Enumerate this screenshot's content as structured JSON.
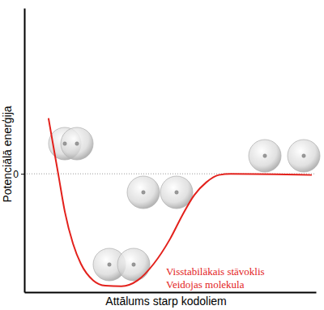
{
  "chart_data": {
    "type": "line",
    "x_label": "Attālums starp kodoliem",
    "y_label": "Potenciālā enerģija",
    "annotations": [
      "Visstabilākais stāvoklis",
      "Veidojas molekula"
    ],
    "x": [
      8.3,
      9.7,
      11.7,
      13.9,
      16.7,
      19.4,
      23.6,
      27.8,
      33.3,
      38.9,
      44.4,
      50,
      54.2,
      58.3,
      62.5,
      66.7,
      70.8,
      98.6
    ],
    "values": [
      4.7,
      2.7,
      -0.1,
      -3.2,
      -5.9,
      -7.6,
      -9.0,
      -9.45,
      -9.5,
      -9.0,
      -7.6,
      -5.5,
      -3.5,
      -1.8,
      -0.7,
      -0.1,
      0,
      -0.1
    ],
    "color": "#e3211c",
    "xlim": [
      0,
      100
    ],
    "ylim": [
      -10,
      14
    ],
    "yticks": [
      0
    ],
    "grid": true,
    "tick_labels": "y"
  }
}
